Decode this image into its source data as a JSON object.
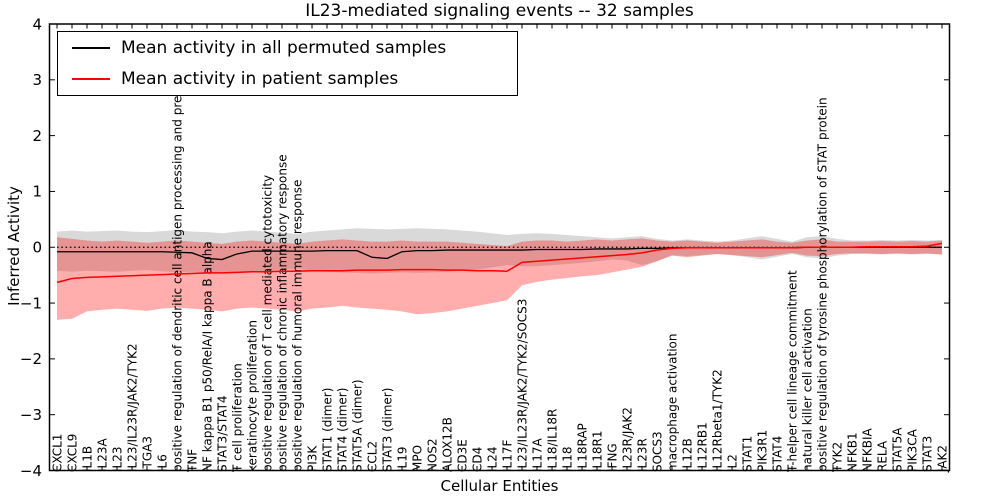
{
  "chart_data": {
    "type": "line",
    "title": "IL23-mediated signaling events -- 32 samples",
    "xlabel": "Cellular Entities",
    "ylabel": "Inferred Activity",
    "ylim": [
      -4,
      4
    ],
    "grid": false,
    "legend_position": "upper left",
    "reference_line": 0,
    "y_ticks": [
      {
        "value": 4,
        "label": "4"
      },
      {
        "value": 3,
        "label": "3"
      },
      {
        "value": 2,
        "label": "2"
      },
      {
        "value": 1,
        "label": "1"
      },
      {
        "value": 0,
        "label": "0"
      },
      {
        "value": -1,
        "label": "−1"
      },
      {
        "value": -2,
        "label": "−2"
      },
      {
        "value": -3,
        "label": "−3"
      },
      {
        "value": -4,
        "label": "−4"
      }
    ],
    "categories": [
      "CXCL1",
      "CXCL9",
      "IL1B",
      "IL23A",
      "IL23",
      "IL23/IL23R/JAK2/TYK2",
      "ITGA3",
      "IL6",
      "positive regulation of dendritic cell antigen processing and presentation",
      "TNF",
      "NF kappa B1 p50/RelA/I kappa B alpha",
      "STAT3/STAT4",
      "T cell proliferation",
      "keratinocyte proliferation",
      "positive regulation of T cell mediated cytotoxicity",
      "positive regulation of chronic inflammatory response",
      "positive regulation of humoral immune response",
      "PI3K",
      "STAT1 (dimer)",
      "STAT4 (dimer)",
      "STAT5A (dimer)",
      "CCL2",
      "STAT3 (dimer)",
      "IL19",
      "MPO",
      "NOS2",
      "ALOX12B",
      "CD3E",
      "CD4",
      "IL24",
      "IL17F",
      "IL23/IL23R/JAK2/TYK2/SOCS3",
      "IL17A",
      "IL18/IL18R",
      "IL18",
      "IL18RAP",
      "IL18R1",
      "IFNG",
      "IL23R/JAK2",
      "IL23R",
      "SOCS3",
      "macrophage activation",
      "IL12B",
      "IL12RB1",
      "IL12Rbeta1/TYK2",
      "IL2",
      "STAT1",
      "PIK3R1",
      "STAT4",
      "T-helper cell lineage commitment",
      "natural killer cell activation",
      "positive regulation of tyrosine phosphorylation of STAT protein",
      "TYK2",
      "NFKB1",
      "NFKBIA",
      "RELA",
      "STAT5A",
      "PIK3CA",
      "STAT3",
      "JAK2"
    ],
    "series": [
      {
        "name": "Mean activity in all permuted samples",
        "color": "#000000",
        "style": "solid",
        "width": 1.3,
        "values": [
          -0.08,
          -0.08,
          -0.08,
          -0.08,
          -0.08,
          -0.08,
          -0.08,
          -0.08,
          -0.09,
          -0.1,
          -0.2,
          -0.22,
          -0.12,
          -0.07,
          -0.07,
          -0.07,
          -0.07,
          -0.07,
          -0.06,
          -0.06,
          -0.06,
          -0.18,
          -0.2,
          -0.08,
          -0.06,
          -0.06,
          -0.05,
          -0.05,
          -0.05,
          -0.05,
          -0.05,
          -0.05,
          -0.04,
          -0.04,
          -0.04,
          -0.04,
          -0.03,
          -0.03,
          -0.03,
          -0.02,
          -0.02,
          -0.01,
          -0.01,
          -0.01,
          -0.01,
          -0.01,
          -0.01,
          -0.01,
          -0.01,
          -0.01,
          0.0,
          0.0,
          0.0,
          0.0,
          0.0,
          0.0,
          0.0,
          0.0,
          0.0,
          0.0
        ]
      },
      {
        "name": "Mean activity in patient samples",
        "color": "#ff0000",
        "style": "solid",
        "width": 1.5,
        "values": [
          -0.63,
          -0.56,
          -0.54,
          -0.53,
          -0.52,
          -0.51,
          -0.5,
          -0.49,
          -0.48,
          -0.47,
          -0.46,
          -0.46,
          -0.45,
          -0.44,
          -0.44,
          -0.43,
          -0.43,
          -0.42,
          -0.42,
          -0.42,
          -0.41,
          -0.41,
          -0.41,
          -0.4,
          -0.4,
          -0.4,
          -0.41,
          -0.41,
          -0.42,
          -0.42,
          -0.43,
          -0.27,
          -0.25,
          -0.23,
          -0.21,
          -0.19,
          -0.17,
          -0.15,
          -0.13,
          -0.1,
          -0.05,
          -0.02,
          -0.01,
          -0.01,
          -0.01,
          -0.01,
          -0.01,
          -0.01,
          -0.01,
          -0.01,
          0.0,
          0.0,
          0.0,
          0.0,
          0.01,
          0.01,
          0.01,
          0.01,
          0.02,
          0.07
        ]
      }
    ],
    "bands": [
      {
        "name": "permuted samples band",
        "color": "#000000",
        "opacity": 0.15,
        "upper": [
          0.28,
          0.3,
          0.28,
          0.29,
          0.3,
          0.28,
          0.27,
          0.29,
          0.31,
          0.28,
          0.27,
          0.25,
          0.28,
          0.3,
          0.28,
          0.26,
          0.24,
          0.28,
          0.3,
          0.32,
          0.34,
          0.33,
          0.32,
          0.33,
          0.34,
          0.33,
          0.32,
          0.3,
          0.28,
          0.25,
          0.22,
          0.24,
          0.25,
          0.24,
          0.22,
          0.2,
          0.18,
          0.16,
          0.18,
          0.2,
          0.15,
          0.12,
          0.14,
          0.12,
          0.1,
          0.12,
          0.16,
          0.2,
          0.15,
          0.1,
          0.18,
          0.2,
          0.15,
          0.12,
          0.12,
          0.13,
          0.12,
          0.13,
          0.12,
          0.13
        ],
        "lower": [
          -0.42,
          -0.44,
          -0.42,
          -0.43,
          -0.44,
          -0.42,
          -0.41,
          -0.43,
          -0.45,
          -0.44,
          -0.45,
          -0.46,
          -0.44,
          -0.44,
          -0.42,
          -0.4,
          -0.38,
          -0.42,
          -0.44,
          -0.45,
          -0.46,
          -0.47,
          -0.46,
          -0.45,
          -0.46,
          -0.45,
          -0.44,
          -0.42,
          -0.4,
          -0.36,
          -0.32,
          -0.34,
          -0.34,
          -0.32,
          -0.3,
          -0.28,
          -0.25,
          -0.22,
          -0.24,
          -0.32,
          -0.25,
          -0.14,
          -0.16,
          -0.14,
          -0.12,
          -0.14,
          -0.18,
          -0.22,
          -0.17,
          -0.12,
          -0.18,
          -0.2,
          -0.15,
          -0.12,
          -0.12,
          -0.13,
          -0.12,
          -0.13,
          -0.12,
          -0.13
        ]
      },
      {
        "name": "patient samples band",
        "color": "#ff0000",
        "opacity": 0.32,
        "upper": [
          0.18,
          0.15,
          0.12,
          0.1,
          0.12,
          0.1,
          0.08,
          0.1,
          0.12,
          0.1,
          0.08,
          0.06,
          0.1,
          0.12,
          0.1,
          0.08,
          0.06,
          0.1,
          0.12,
          0.14,
          0.12,
          0.1,
          0.1,
          0.12,
          0.1,
          0.1,
          0.1,
          0.08,
          0.06,
          0.04,
          0.02,
          0.1,
          0.12,
          0.12,
          0.1,
          0.12,
          0.14,
          0.12,
          0.14,
          0.16,
          0.12,
          0.1,
          0.12,
          0.1,
          0.08,
          0.1,
          0.12,
          0.14,
          0.1,
          0.08,
          0.12,
          0.14,
          0.1,
          0.1,
          0.1,
          0.11,
          0.1,
          0.11,
          0.1,
          0.12
        ],
        "lower": [
          -1.3,
          -1.28,
          -1.15,
          -1.12,
          -1.1,
          -1.12,
          -1.14,
          -1.1,
          -1.08,
          -1.1,
          -1.12,
          -1.15,
          -1.1,
          -1.08,
          -1.1,
          -1.12,
          -1.15,
          -1.1,
          -1.08,
          -1.05,
          -1.08,
          -1.1,
          -1.12,
          -1.15,
          -1.2,
          -1.18,
          -1.15,
          -1.1,
          -1.05,
          -1.0,
          -0.95,
          -0.68,
          -0.62,
          -0.58,
          -0.55,
          -0.52,
          -0.5,
          -0.45,
          -0.4,
          -0.35,
          -0.25,
          -0.15,
          -0.18,
          -0.15,
          -0.12,
          -0.14,
          -0.16,
          -0.18,
          -0.14,
          -0.1,
          -0.15,
          -0.16,
          -0.12,
          -0.11,
          -0.11,
          -0.12,
          -0.11,
          -0.12,
          -0.11,
          -0.13
        ]
      }
    ]
  },
  "legend": {
    "items": [
      {
        "label": "Mean activity in all permuted samples",
        "color": "#000000"
      },
      {
        "label": "Mean activity in patient samples",
        "color": "#ff0000"
      }
    ]
  }
}
